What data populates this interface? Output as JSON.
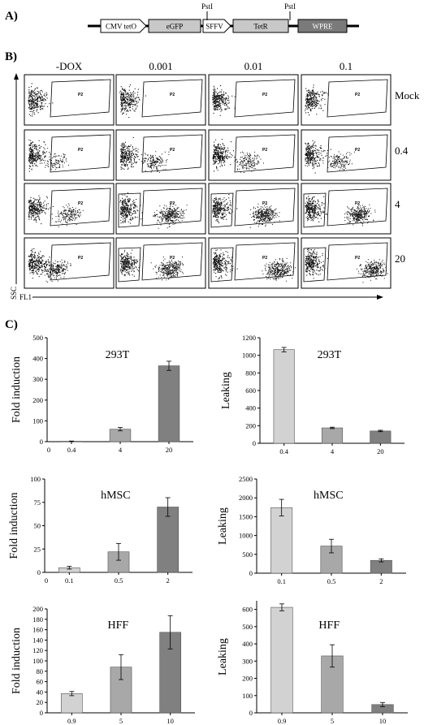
{
  "panel_a": {
    "label": "A)",
    "pst_left": "PstI",
    "pst_right": "PstI",
    "elements": [
      {
        "name": "CMV tetO",
        "kind": "arrow",
        "fill": "#ffffff"
      },
      {
        "name": "eGFP",
        "kind": "box",
        "fill": "#c8c8c8"
      },
      {
        "name": "SFFV",
        "kind": "arrow",
        "fill": "#ffffff"
      },
      {
        "name": "TetR",
        "kind": "box",
        "fill": "#c8c8c8"
      },
      {
        "name": "WPRE",
        "kind": "box",
        "fill": "#7a7a7a"
      }
    ]
  },
  "panel_b": {
    "label": "B)",
    "columns": [
      "-DOX",
      "0.001",
      "0.01",
      "0.1"
    ],
    "rows": [
      "Mock",
      "0.4",
      "4",
      "20"
    ],
    "gate_p2": "P2",
    "gate_p3": "P3",
    "p3_shown": [
      [
        false,
        false,
        false,
        false
      ],
      [
        false,
        false,
        false,
        false
      ],
      [
        false,
        true,
        true,
        true
      ],
      [
        false,
        true,
        true,
        true
      ]
    ],
    "ylabel": "SSC",
    "xlabel": "FL1"
  },
  "panel_c": {
    "label": "C)",
    "chart_data": [
      {
        "type": "bar",
        "title": "293T",
        "ylabel": "Fold induction",
        "xlabel": "",
        "categories": [
          "0.4",
          "4",
          "20"
        ],
        "values": [
          2,
          60,
          365
        ],
        "errors": [
          1,
          8,
          22
        ],
        "ylim": [
          0,
          500
        ],
        "yticks": [
          0,
          100,
          200,
          300,
          400,
          500
        ],
        "x_extra_tick": "0",
        "colors": [
          "#d2d2d2",
          "#a8a8a8",
          "#808080"
        ],
        "grid": false
      },
      {
        "type": "bar",
        "title": "293T",
        "ylabel": "Leaking",
        "xlabel": "",
        "categories": [
          "0.4",
          "4",
          "20"
        ],
        "values": [
          1065,
          175,
          140
        ],
        "errors": [
          25,
          8,
          8
        ],
        "ylim": [
          0,
          1200
        ],
        "yticks": [
          0,
          200,
          400,
          600,
          800,
          1000,
          1200
        ],
        "x_extra_tick": "",
        "colors": [
          "#d2d2d2",
          "#a8a8a8",
          "#808080"
        ],
        "grid": false
      },
      {
        "type": "bar",
        "title": "hMSC",
        "ylabel": "Fold induction",
        "xlabel": "",
        "categories": [
          "0.1",
          "0.5",
          "2"
        ],
        "values": [
          5,
          22,
          70
        ],
        "errors": [
          1.5,
          9,
          10
        ],
        "ylim": [
          0,
          100
        ],
        "yticks": [
          0,
          25,
          50,
          75,
          100
        ],
        "x_extra_tick": "0",
        "colors": [
          "#d2d2d2",
          "#a8a8a8",
          "#808080"
        ],
        "grid": false
      },
      {
        "type": "bar",
        "title": "hMSC",
        "ylabel": "Leaking",
        "xlabel": "",
        "categories": [
          "0.1",
          "0.5",
          "2"
        ],
        "values": [
          1740,
          720,
          340
        ],
        "errors": [
          220,
          180,
          40
        ],
        "ylim": [
          0,
          2500
        ],
        "yticks": [
          0,
          500,
          1000,
          1500,
          2000,
          2500
        ],
        "x_extra_tick": "",
        "colors": [
          "#d2d2d2",
          "#a8a8a8",
          "#808080"
        ],
        "grid": false
      },
      {
        "type": "bar",
        "title": "HFF",
        "ylabel": "Fold induction",
        "xlabel": "",
        "categories": [
          "0.9",
          "5",
          "10"
        ],
        "values": [
          37,
          88,
          155
        ],
        "errors": [
          4,
          24,
          32
        ],
        "ylim": [
          0,
          200
        ],
        "yticks": [
          0,
          20,
          40,
          60,
          80,
          100,
          120,
          140,
          160,
          180,
          200
        ],
        "x_extra_tick": "",
        "colors": [
          "#d2d2d2",
          "#a8a8a8",
          "#808080"
        ],
        "grid": false
      },
      {
        "type": "bar",
        "title": "HFF",
        "ylabel": "Leaking",
        "xlabel": "",
        "categories": [
          "0.9",
          "5",
          "10"
        ],
        "values": [
          612,
          330,
          48
        ],
        "errors": [
          20,
          65,
          12
        ],
        "ylim": [
          0,
          650
        ],
        "yticks": [
          0,
          100,
          200,
          300,
          400,
          500,
          600
        ],
        "x_extra_tick": "",
        "colors": [
          "#d2d2d2",
          "#a8a8a8",
          "#808080"
        ],
        "grid": false
      }
    ]
  }
}
